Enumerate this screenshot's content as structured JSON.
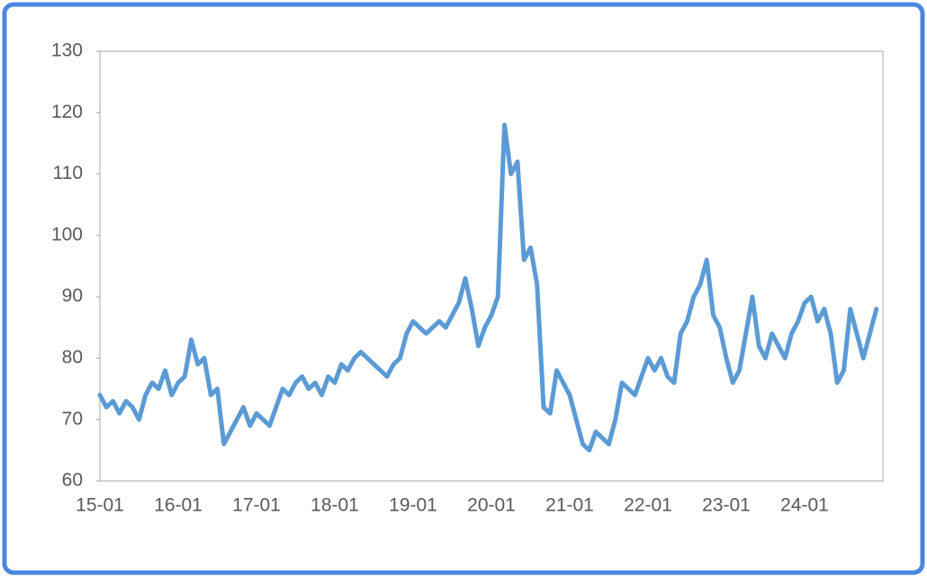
{
  "chart_data": {
    "type": "line",
    "categories": [
      "15-01",
      null,
      null,
      null,
      null,
      null,
      null,
      null,
      null,
      null,
      null,
      null,
      "16-01",
      null,
      null,
      null,
      null,
      null,
      null,
      null,
      null,
      null,
      null,
      null,
      "17-01",
      null,
      null,
      null,
      null,
      null,
      null,
      null,
      null,
      null,
      null,
      null,
      "18-01",
      null,
      null,
      null,
      null,
      null,
      null,
      null,
      null,
      null,
      null,
      null,
      "19-01",
      null,
      null,
      null,
      null,
      null,
      null,
      null,
      null,
      null,
      null,
      null,
      "20-01",
      null,
      null,
      null,
      null,
      null,
      null,
      null,
      null,
      null,
      null,
      null,
      "21-01",
      null,
      null,
      null,
      null,
      null,
      null,
      null,
      null,
      null,
      null,
      null,
      "22-01",
      null,
      null,
      null,
      null,
      null,
      null,
      null,
      null,
      null,
      null,
      null,
      "23-01",
      null,
      null,
      null,
      null,
      null,
      null,
      null,
      null,
      null,
      null,
      null,
      "24-01",
      null,
      null,
      null,
      null,
      null,
      null,
      null,
      null,
      null,
      null,
      null
    ],
    "series": [
      {
        "color": "#5b9bd5",
        "values": [
          74,
          72,
          73,
          71,
          73,
          72,
          70,
          74,
          76,
          75,
          78,
          74,
          76,
          77,
          83,
          79,
          80,
          74,
          75,
          66,
          68,
          70,
          72,
          69,
          71,
          70,
          69,
          72,
          75,
          74,
          76,
          77,
          75,
          76,
          74,
          77,
          76,
          79,
          78,
          80,
          81,
          80,
          79,
          78,
          77,
          79,
          80,
          84,
          86,
          85,
          84,
          85,
          86,
          85,
          87,
          89,
          93,
          88,
          82,
          85,
          87,
          90,
          118,
          110,
          112,
          96,
          98,
          92,
          72,
          71,
          78,
          76,
          74,
          70,
          66,
          65,
          68,
          67,
          66,
          70,
          76,
          75,
          74,
          77,
          80,
          78,
          80,
          77,
          76,
          84,
          86,
          90,
          92,
          96,
          87,
          85,
          80,
          76,
          78,
          84,
          90,
          82,
          80,
          84,
          82,
          80,
          84,
          86,
          89,
          90,
          86,
          88,
          84,
          76,
          78,
          88,
          84,
          80,
          84,
          88
        ]
      }
    ],
    "ylim": [
      60,
      130
    ],
    "yticks": [
      60,
      70,
      80,
      90,
      100,
      110,
      120,
      130
    ]
  }
}
